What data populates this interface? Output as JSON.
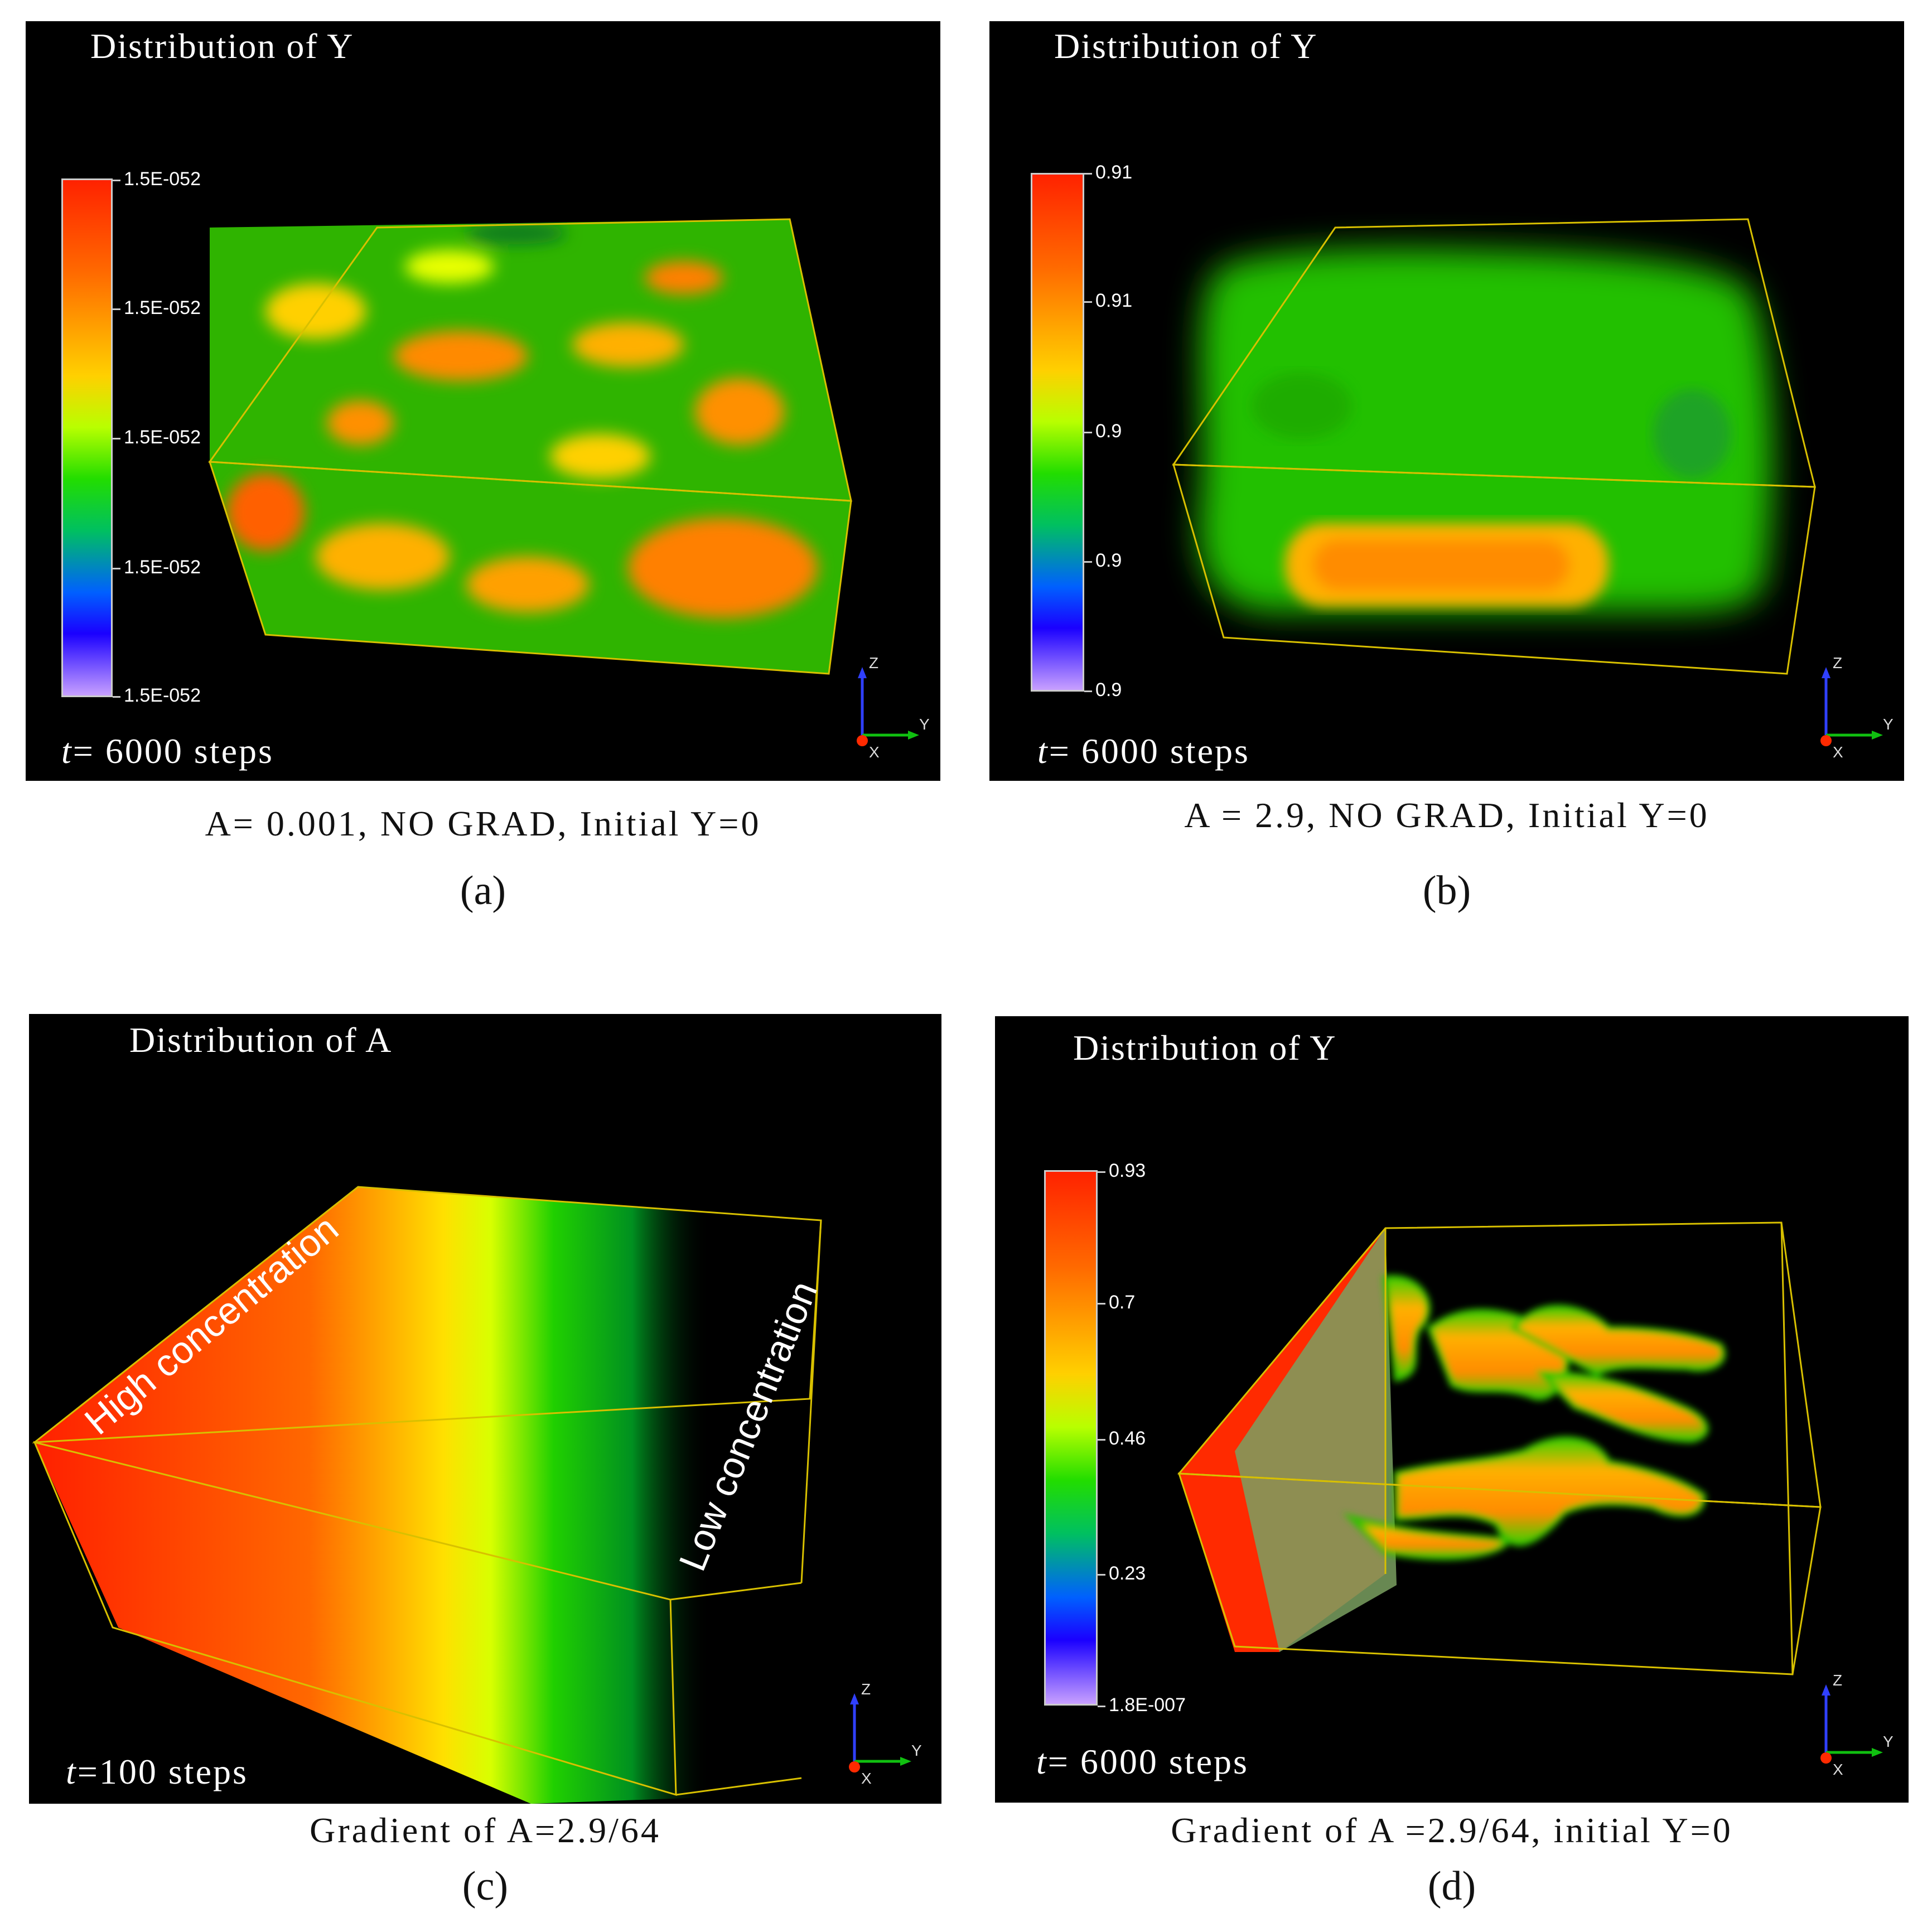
{
  "panels": [
    {
      "title": "Distribution of Y",
      "colorbar_ticks": [
        "1.5E-052",
        "1.5E-052",
        "1.5E-052",
        "1.5E-052",
        "1.5E-052"
      ],
      "steps_prefix": "t",
      "steps_text": "= 6000 steps",
      "caption": "A= 0.001, NO GRAD, Initial Y=0",
      "label": "(a)"
    },
    {
      "title": "Distribution of Y",
      "colorbar_ticks": [
        "0.91",
        "0.91",
        "0.9",
        "0.9",
        "0.9"
      ],
      "steps_prefix": "t",
      "steps_text": "= 6000 steps",
      "caption": "A = 2.9, NO GRAD, Initial Y=0",
      "label": "(b)"
    },
    {
      "title": "Distribution of A",
      "annotation_high": "High concentration",
      "annotation_low": "Low concentration",
      "steps_prefix": "t",
      "steps_text": "=100 steps",
      "caption": "Gradient of A=2.9/64",
      "label": "(c)"
    },
    {
      "title": "Distribution of Y",
      "colorbar_ticks": [
        "0.93",
        "0.7",
        "0.46",
        "0.23",
        "1.8E-007"
      ],
      "steps_prefix": "t",
      "steps_text": "= 6000 steps",
      "caption": "Gradient of A =2.9/64, initial Y=0",
      "label": "(d)"
    }
  ],
  "axes_triad": {
    "z": "Z",
    "y": "Y",
    "x": "X"
  },
  "colors": {
    "box_edge": "#d8c000",
    "background": "#000000"
  }
}
